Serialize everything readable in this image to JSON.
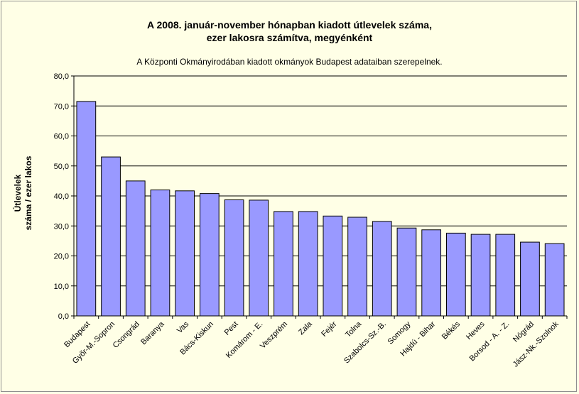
{
  "chart_data": {
    "type": "bar",
    "title_line1": "A 2008. január-november hónapban kiadott útlevelek száma,",
    "title_line2": "ezer lakosra számítva, megyénként",
    "subtitle": "A Központi Okmányirodában kiadott okmányok Budapest adataiban szerepelnek.",
    "ylabel_line1": "Útlevelek",
    "ylabel_line2": "száma / ezer lakos",
    "xlabel": "",
    "ylim": [
      0,
      80
    ],
    "yticks": [
      "0,0",
      "10,0",
      "20,0",
      "30,0",
      "40,0",
      "50,0",
      "60,0",
      "70,0",
      "80,0"
    ],
    "grid": true,
    "categories": [
      "Budapest",
      "Győr-M.-Sopron",
      "Csongrád",
      "Baranya",
      "Vas",
      "Bács-Kiskun",
      "Pest",
      "Komárom - E.",
      "Veszprém",
      "Zala",
      "Fejér",
      "Tolna",
      "Szabolcs-Sz.-B.",
      "Somogy",
      "Hajdú - Bihar",
      "Békés",
      "Heves",
      "Borsod - A. - Z.",
      "Nógrád",
      "Jász-Nk.-Szolnok"
    ],
    "values": [
      71.5,
      53.0,
      45.0,
      42.0,
      41.7,
      40.8,
      38.7,
      38.6,
      34.8,
      34.8,
      33.3,
      32.9,
      31.5,
      29.3,
      28.7,
      27.6,
      27.2,
      27.2,
      24.6,
      24.1
    ],
    "bar_color": "#9999ff",
    "bar_stroke": "#000000",
    "plot_bg": "#ffffe6",
    "grid_color": "#000000"
  }
}
